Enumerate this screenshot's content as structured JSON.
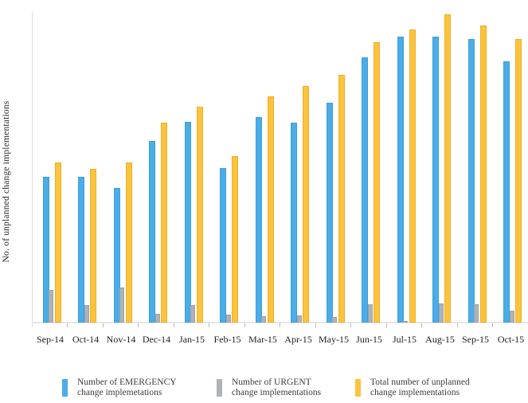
{
  "chart_data": {
    "type": "bar",
    "title": "",
    "xlabel": "",
    "ylabel": "No. of unplanned change implementations",
    "categories": [
      "Sep-14",
      "Oct-14",
      "Nov-14",
      "Dec-14",
      "Jan-15",
      "Feb-15",
      "Mar-15",
      "Apr-15",
      "May-15",
      "Jun-15",
      "Jul-15",
      "Aug-15",
      "Sep-15",
      "Oct-15"
    ],
    "series": [
      {
        "name": "Number of EMERGENCY change implemetations",
        "key": "emergency",
        "color": "#4aade8",
        "border_color": "#3d9fd9",
        "values": [
          183,
          183,
          169,
          228,
          252,
          194,
          258,
          251,
          276,
          333,
          359,
          359,
          356,
          328
        ]
      },
      {
        "name": "Number of URGENT change implementations",
        "key": "urgent",
        "color": "#aeb2b9",
        "border_color": "#9da3ab",
        "values": [
          41,
          22,
          44,
          11,
          22,
          10,
          8,
          9,
          7,
          23,
          2,
          24,
          23,
          15
        ]
      },
      {
        "name": "Total number of unplanned change implementations",
        "key": "total",
        "color": "#fcc33d",
        "border_color": "#f0af2b",
        "values": [
          201,
          193,
          201,
          251,
          271,
          209,
          284,
          297,
          311,
          352,
          368,
          387,
          373,
          356
        ]
      }
    ],
    "value_units": "relative bar heights (no numeric y-axis tick labels shown)",
    "ylim": [
      0,
      391
    ],
    "grid": false,
    "legend_position": "bottom"
  },
  "legend": {
    "items": [
      {
        "line1": "Number of EMERGENCY",
        "line2": "change implemetations",
        "swatch_color": "#4aade8"
      },
      {
        "line1": "Number of URGENT",
        "line2": "change implementations",
        "swatch_color": "#aeb2b9"
      },
      {
        "line1": "Total number of unplanned",
        "line2": "change implementations",
        "swatch_color": "#fcc33d"
      }
    ]
  },
  "colors": {
    "y_axis_line": "#dcdcdc",
    "x_axis_line": "#e6e6e6",
    "tick": "#c2bab8",
    "axis_text": "#1e1e1e",
    "legend_text": "#3c3c3c"
  }
}
